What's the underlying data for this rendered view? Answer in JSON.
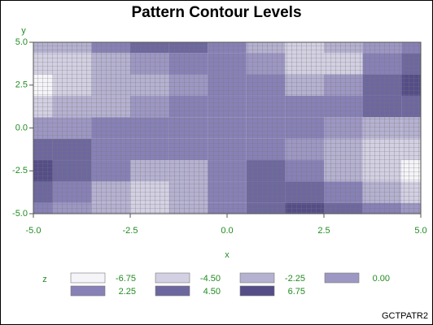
{
  "chart_data": {
    "type": "contour",
    "title": "Pattern Contour Levels",
    "xlabel": "x",
    "ylabel": "y",
    "legend_title": "z",
    "footnote": "GCTPATR2",
    "xlim": [
      -5,
      5
    ],
    "ylim": [
      -5,
      5
    ],
    "xticks": [
      {
        "value": -5,
        "label": "-5.0"
      },
      {
        "value": -2.5,
        "label": "-2.5"
      },
      {
        "value": 0,
        "label": "0.0"
      },
      {
        "value": 2.5,
        "label": "2.5"
      },
      {
        "value": 5,
        "label": "5.0"
      }
    ],
    "yticks": [
      {
        "value": -5,
        "label": "-5.0"
      },
      {
        "value": -2.5,
        "label": "-2.5"
      },
      {
        "value": 0,
        "label": "0.0"
      },
      {
        "value": 2.5,
        "label": "2.5"
      },
      {
        "value": 5,
        "label": "5.0"
      }
    ],
    "levels": [
      {
        "value": -6.75,
        "label": "-6.75",
        "color": "#f5f5f9"
      },
      {
        "value": -4.5,
        "label": "-4.50",
        "color": "#d3d0e3"
      },
      {
        "value": -2.25,
        "label": "-2.25",
        "color": "#b5b1d1"
      },
      {
        "value": 0,
        "label": "0.00",
        "color": "#9d97c4"
      },
      {
        "value": 2.25,
        "label": "2.25",
        "color": "#8781b7"
      },
      {
        "value": 4.5,
        "label": "4.50",
        "color": "#6d679f"
      },
      {
        "value": 6.75,
        "label": "6.75",
        "color": "#544d88"
      }
    ],
    "x": [
      -5,
      -4,
      -3,
      -2,
      -1,
      0,
      1,
      2,
      3,
      4,
      5
    ],
    "y": [
      5,
      3.75,
      2.5,
      1.25,
      0,
      -1.25,
      -2.5,
      -3.75,
      -5
    ],
    "z": [
      [
        -2.25,
        -2.25,
        2.25,
        4.5,
        4.5,
        2.25,
        -2.25,
        -4.5,
        -2.25,
        0,
        2.25
      ],
      [
        -4.5,
        -4.5,
        -2.25,
        0,
        2.25,
        2.25,
        0,
        -4.5,
        -4.5,
        2.25,
        4.5
      ],
      [
        -6.75,
        -4.5,
        -2.25,
        -2.25,
        0,
        2.25,
        2.25,
        -2.25,
        0,
        4.5,
        6.75
      ],
      [
        -4.5,
        -2.25,
        -2.25,
        0,
        2.25,
        2.25,
        2.25,
        2.25,
        2.25,
        4.5,
        4.5
      ],
      [
        0,
        0,
        2.25,
        2.25,
        2.25,
        2.25,
        2.25,
        2.25,
        0,
        -2.25,
        -2.25
      ],
      [
        4.5,
        4.5,
        2.25,
        2.25,
        2.25,
        2.25,
        2.25,
        0,
        -2.25,
        -4.5,
        -4.5
      ],
      [
        6.75,
        4.5,
        2.25,
        -2.25,
        -2.25,
        2.25,
        4.5,
        2.25,
        -2.25,
        -4.5,
        -6.75
      ],
      [
        4.5,
        2.25,
        -2.25,
        -4.5,
        -2.25,
        2.25,
        4.5,
        4.5,
        2.25,
        -2.25,
        -4.5
      ],
      [
        2.25,
        0,
        -2.25,
        -4.5,
        -2.25,
        2.25,
        4.5,
        6.75,
        4.5,
        2.25,
        0
      ]
    ]
  }
}
